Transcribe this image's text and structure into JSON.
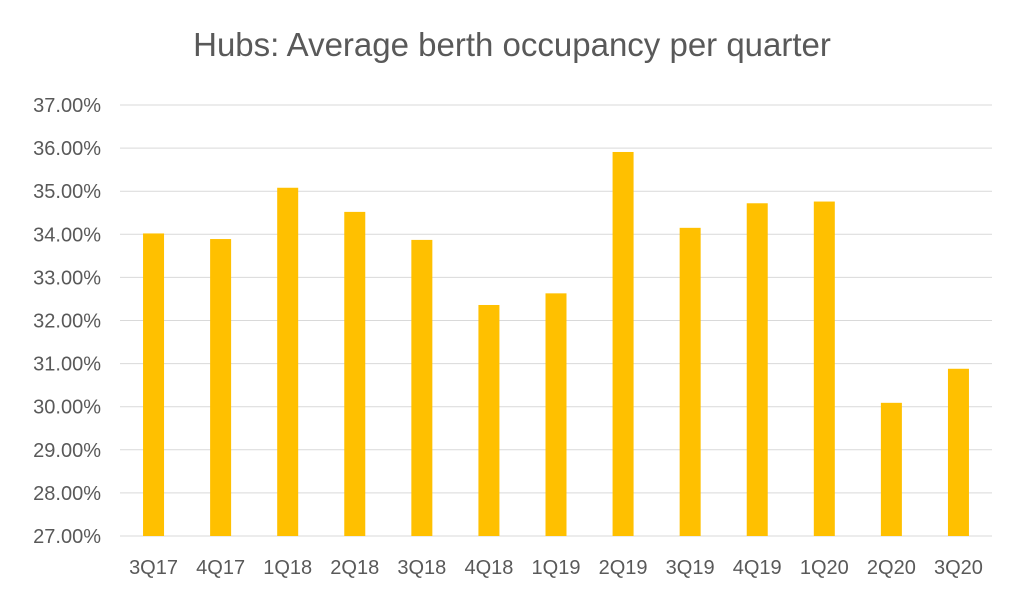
{
  "chart_data": {
    "type": "bar",
    "title": "Hubs: Average berth occupancy per quarter",
    "categories": [
      "3Q17",
      "4Q17",
      "1Q18",
      "2Q18",
      "3Q18",
      "4Q18",
      "1Q19",
      "2Q19",
      "3Q19",
      "4Q19",
      "1Q20",
      "2Q20",
      "3Q20"
    ],
    "values": [
      34.02,
      33.89,
      35.08,
      34.52,
      33.87,
      32.36,
      32.63,
      35.91,
      34.15,
      34.72,
      34.76,
      30.09,
      30.88
    ],
    "xlabel": "",
    "ylabel": "",
    "ylim": [
      27,
      37
    ],
    "yticks": [
      "27.00%",
      "28.00%",
      "29.00%",
      "30.00%",
      "31.00%",
      "32.00%",
      "33.00%",
      "34.00%",
      "35.00%",
      "36.00%",
      "37.00%"
    ],
    "grid": true,
    "legend": "none",
    "bar_color": "#FFC000",
    "grid_color": "#D9D9D9",
    "text_color": "#595959"
  }
}
